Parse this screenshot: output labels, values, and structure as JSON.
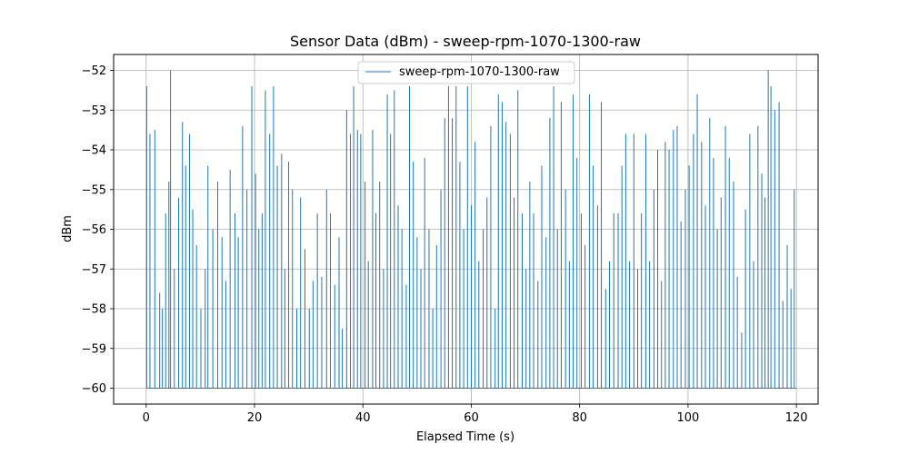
{
  "chart_data": {
    "type": "line",
    "title": "Sensor Data (dBm) - sweep-rpm-1070-1300-raw",
    "xlabel": "Elapsed Time (s)",
    "ylabel": "dBm",
    "xlim": [
      -6,
      124
    ],
    "ylim": [
      -60.4,
      -51.6
    ],
    "xticks": [
      0,
      20,
      40,
      60,
      80,
      100,
      120
    ],
    "xtick_labels": [
      "0",
      "20",
      "40",
      "60",
      "80",
      "100",
      "120"
    ],
    "yticks": [
      -52,
      -53,
      -54,
      -55,
      -56,
      -57,
      -58,
      -59,
      -60
    ],
    "ytick_labels": [
      "−52",
      "−53",
      "−54",
      "−55",
      "−56",
      "−57",
      "−58",
      "−59",
      "−60"
    ],
    "grid": true,
    "legend_position": "top-center",
    "baseline": -60,
    "x_start": 0,
    "x_end": 120,
    "series": [
      {
        "name": "sweep-rpm-1070-1300-raw",
        "color": "#1f77b4",
        "spikes": [
          [
            0.1,
            -52.4
          ],
          [
            0.7,
            -53.6
          ],
          [
            1.6,
            -53.5
          ],
          [
            2.5,
            -57.6
          ],
          [
            3.0,
            -58.0
          ],
          [
            3.6,
            -55.6
          ],
          [
            4.2,
            -54.8
          ],
          [
            4.5,
            -52.0
          ],
          [
            5.2,
            -57.0
          ],
          [
            6.0,
            -55.2
          ],
          [
            6.7,
            -53.3
          ],
          [
            7.3,
            -54.4
          ],
          [
            8.0,
            -53.6
          ],
          [
            8.6,
            -55.5
          ],
          [
            9.3,
            -56.4
          ],
          [
            10.1,
            -58.0
          ],
          [
            10.9,
            -57.0
          ],
          [
            11.4,
            -54.4
          ],
          [
            12.3,
            -56.0
          ],
          [
            13.2,
            -54.8
          ],
          [
            14.0,
            -56.2
          ],
          [
            14.7,
            -57.3
          ],
          [
            15.5,
            -54.5
          ],
          [
            16.4,
            -55.6
          ],
          [
            17.0,
            -56.2
          ],
          [
            17.8,
            -53.4
          ],
          [
            18.6,
            -55.0
          ],
          [
            19.5,
            -52.4
          ],
          [
            20.2,
            -54.6
          ],
          [
            20.8,
            -56.0
          ],
          [
            21.4,
            -55.6
          ],
          [
            22.0,
            -52.5
          ],
          [
            22.8,
            -53.6
          ],
          [
            23.5,
            -52.4
          ],
          [
            24.2,
            -54.4
          ],
          [
            25.0,
            -54.1
          ],
          [
            25.6,
            -57.0
          ],
          [
            26.3,
            -54.3
          ],
          [
            27.0,
            -55.0
          ],
          [
            27.8,
            -58.0
          ],
          [
            28.5,
            -55.2
          ],
          [
            29.3,
            -56.5
          ],
          [
            30.1,
            -58.0
          ],
          [
            30.8,
            -57.3
          ],
          [
            31.6,
            -55.6
          ],
          [
            32.4,
            -57.2
          ],
          [
            33.3,
            -55.0
          ],
          [
            34.0,
            -55.6
          ],
          [
            34.8,
            -57.4
          ],
          [
            35.6,
            -56.2
          ],
          [
            36.2,
            -58.5
          ],
          [
            37.0,
            -53.0
          ],
          [
            37.7,
            -53.6
          ],
          [
            38.3,
            -52.4
          ],
          [
            39.0,
            -53.5
          ],
          [
            39.6,
            -53.6
          ],
          [
            40.4,
            -54.8
          ],
          [
            41.0,
            -56.8
          ],
          [
            41.8,
            -53.5
          ],
          [
            42.4,
            -55.6
          ],
          [
            43.1,
            -54.8
          ],
          [
            43.8,
            -57.0
          ],
          [
            44.5,
            -52.6
          ],
          [
            45.1,
            -53.6
          ],
          [
            45.8,
            -52.5
          ],
          [
            46.5,
            -55.4
          ],
          [
            47.2,
            -56.0
          ],
          [
            48.0,
            -57.4
          ],
          [
            48.6,
            -52.4
          ],
          [
            49.3,
            -54.3
          ],
          [
            50.0,
            -56.2
          ],
          [
            50.7,
            -57.0
          ],
          [
            51.4,
            -54.2
          ],
          [
            52.2,
            -56.0
          ],
          [
            52.9,
            -58.0
          ],
          [
            53.6,
            -56.4
          ],
          [
            54.4,
            -55.0
          ],
          [
            55.1,
            -53.2
          ],
          [
            55.8,
            -52.4
          ],
          [
            56.5,
            -53.2
          ],
          [
            57.2,
            -52.4
          ],
          [
            57.9,
            -54.3
          ],
          [
            58.6,
            -56.0
          ],
          [
            59.3,
            -52.4
          ],
          [
            60.0,
            -55.4
          ],
          [
            60.7,
            -53.8
          ],
          [
            61.4,
            -56.8
          ],
          [
            62.2,
            -56.0
          ],
          [
            62.9,
            -55.2
          ],
          [
            63.6,
            -53.4
          ],
          [
            64.4,
            -58.0
          ],
          [
            65.0,
            -52.6
          ],
          [
            65.7,
            -52.8
          ],
          [
            66.4,
            -53.3
          ],
          [
            67.2,
            -53.6
          ],
          [
            67.9,
            -55.2
          ],
          [
            68.6,
            -52.5
          ],
          [
            69.4,
            -55.6
          ],
          [
            70.1,
            -57.0
          ],
          [
            70.8,
            -54.8
          ],
          [
            71.5,
            -55.6
          ],
          [
            72.3,
            -57.3
          ],
          [
            73.0,
            -54.4
          ],
          [
            73.8,
            -56.2
          ],
          [
            74.5,
            -53.2
          ],
          [
            75.2,
            -52.4
          ],
          [
            75.9,
            -56.0
          ],
          [
            76.6,
            -52.8
          ],
          [
            77.4,
            -55.0
          ],
          [
            78.1,
            -56.8
          ],
          [
            78.8,
            -52.6
          ],
          [
            79.5,
            -54.2
          ],
          [
            80.3,
            -55.6
          ],
          [
            81.0,
            -56.4
          ],
          [
            81.8,
            -52.6
          ],
          [
            82.5,
            -54.4
          ],
          [
            83.3,
            -55.4
          ],
          [
            84.0,
            -52.8
          ],
          [
            84.8,
            -57.5
          ],
          [
            85.5,
            -56.8
          ],
          [
            86.3,
            -55.6
          ],
          [
            87.1,
            -55.6
          ],
          [
            87.8,
            -54.4
          ],
          [
            88.5,
            -53.6
          ],
          [
            89.2,
            -56.8
          ],
          [
            90.0,
            -53.6
          ],
          [
            90.7,
            -57.0
          ],
          [
            91.4,
            -55.6
          ],
          [
            92.2,
            -53.6
          ],
          [
            92.9,
            -56.8
          ],
          [
            93.7,
            -55.0
          ],
          [
            94.4,
            -54.0
          ],
          [
            95.1,
            -57.3
          ],
          [
            95.8,
            -53.8
          ],
          [
            96.5,
            -54.0
          ],
          [
            97.3,
            -53.5
          ],
          [
            98.0,
            -53.4
          ],
          [
            98.7,
            -55.8
          ],
          [
            99.5,
            -55.0
          ],
          [
            100.2,
            -54.4
          ],
          [
            101.0,
            -53.6
          ],
          [
            101.7,
            -52.6
          ],
          [
            102.5,
            -53.8
          ],
          [
            103.2,
            -55.4
          ],
          [
            104.0,
            -53.2
          ],
          [
            104.7,
            -54.2
          ],
          [
            105.4,
            -56.0
          ],
          [
            106.1,
            -55.2
          ],
          [
            106.9,
            -53.4
          ],
          [
            107.6,
            -54.2
          ],
          [
            108.4,
            -54.8
          ],
          [
            109.1,
            -57.2
          ],
          [
            109.9,
            -58.6
          ],
          [
            110.6,
            -55.5
          ],
          [
            111.4,
            -53.6
          ],
          [
            112.1,
            -56.8
          ],
          [
            112.9,
            -53.4
          ],
          [
            113.6,
            -54.6
          ],
          [
            114.2,
            -55.2
          ],
          [
            114.8,
            -52.0
          ],
          [
            115.3,
            -52.4
          ],
          [
            116.0,
            -53.0
          ],
          [
            116.8,
            -52.8
          ],
          [
            117.5,
            -57.8
          ],
          [
            118.3,
            -56.4
          ],
          [
            119.0,
            -57.5
          ],
          [
            119.6,
            -55.0
          ]
        ]
      }
    ]
  }
}
